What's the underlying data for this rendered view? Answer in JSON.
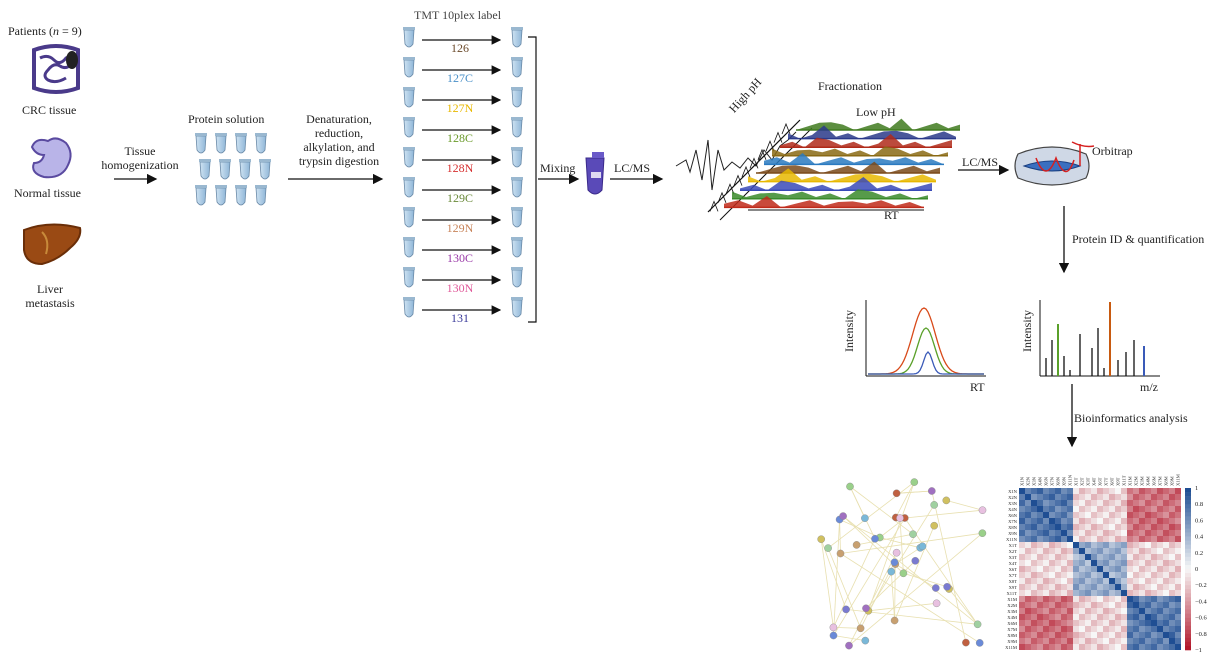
{
  "patients": {
    "label_pre": "Patients (",
    "label_n": "n",
    "label_post": " = 9)"
  },
  "tissues": [
    "CRC tissue",
    "Normal tissue",
    "Liver",
    "metastasis"
  ],
  "steps": {
    "homogenization": [
      "Tissue",
      "homogenization"
    ],
    "protein_solution": "Protein solution",
    "digestion": [
      "Denaturation,",
      "reduction,",
      "alkylation, and",
      "trypsin digestion"
    ],
    "tmt_title": "TMT 10plex label",
    "mixing": "Mixing",
    "lcms1": "LC/MS",
    "lcms2": "LC/MS",
    "fractionation": "Fractionation",
    "high_ph": "High pH",
    "low_ph": "Low pH",
    "rt_frac": "RT",
    "orbitrap": "Orbitrap",
    "protein_id": "Protein ID & quantification",
    "bioinformatics": "Bioinformatics analysis"
  },
  "tmt_channels": [
    {
      "label": "126",
      "color": "#6b4a2b"
    },
    {
      "label": "127C",
      "color": "#4a90c8"
    },
    {
      "label": "127N",
      "color": "#e8b800"
    },
    {
      "label": "128C",
      "color": "#6a9a2a"
    },
    {
      "label": "128N",
      "color": "#d63030"
    },
    {
      "label": "129C",
      "color": "#6a8a3a"
    },
    {
      "label": "129N",
      "color": "#c8845a"
    },
    {
      "label": "130C",
      "color": "#9a3aa8"
    },
    {
      "label": "130N",
      "color": "#e05a9a"
    },
    {
      "label": "131",
      "color": "#3a3a9a"
    }
  ],
  "plots": {
    "chrom_ylabel": "Intensity",
    "chrom_xlabel": "RT",
    "ms_ylabel": "Intensity",
    "ms_xlabel": "m/z"
  },
  "heatmap": {
    "labels": [
      "X1N",
      "X2N",
      "X3N",
      "X4N",
      "X6N",
      "X7N",
      "X8N",
      "X9N",
      "X11N",
      "X1T",
      "X2T",
      "X3T",
      "X4T",
      "X6T",
      "X7T",
      "X8T",
      "X9T",
      "X11T",
      "X1M",
      "X2M",
      "X3M",
      "X4M",
      "X6M",
      "X7M",
      "X8M",
      "X9M",
      "X11M"
    ],
    "scale_ticks": [
      "1",
      "0.8",
      "0.6",
      "0.4",
      "0.2",
      "0",
      "−0.2",
      "−0.4",
      "−0.6",
      "−0.8",
      "−1"
    ],
    "colors": {
      "pos": "#1f4e93",
      "neg": "#b2182b"
    }
  }
}
